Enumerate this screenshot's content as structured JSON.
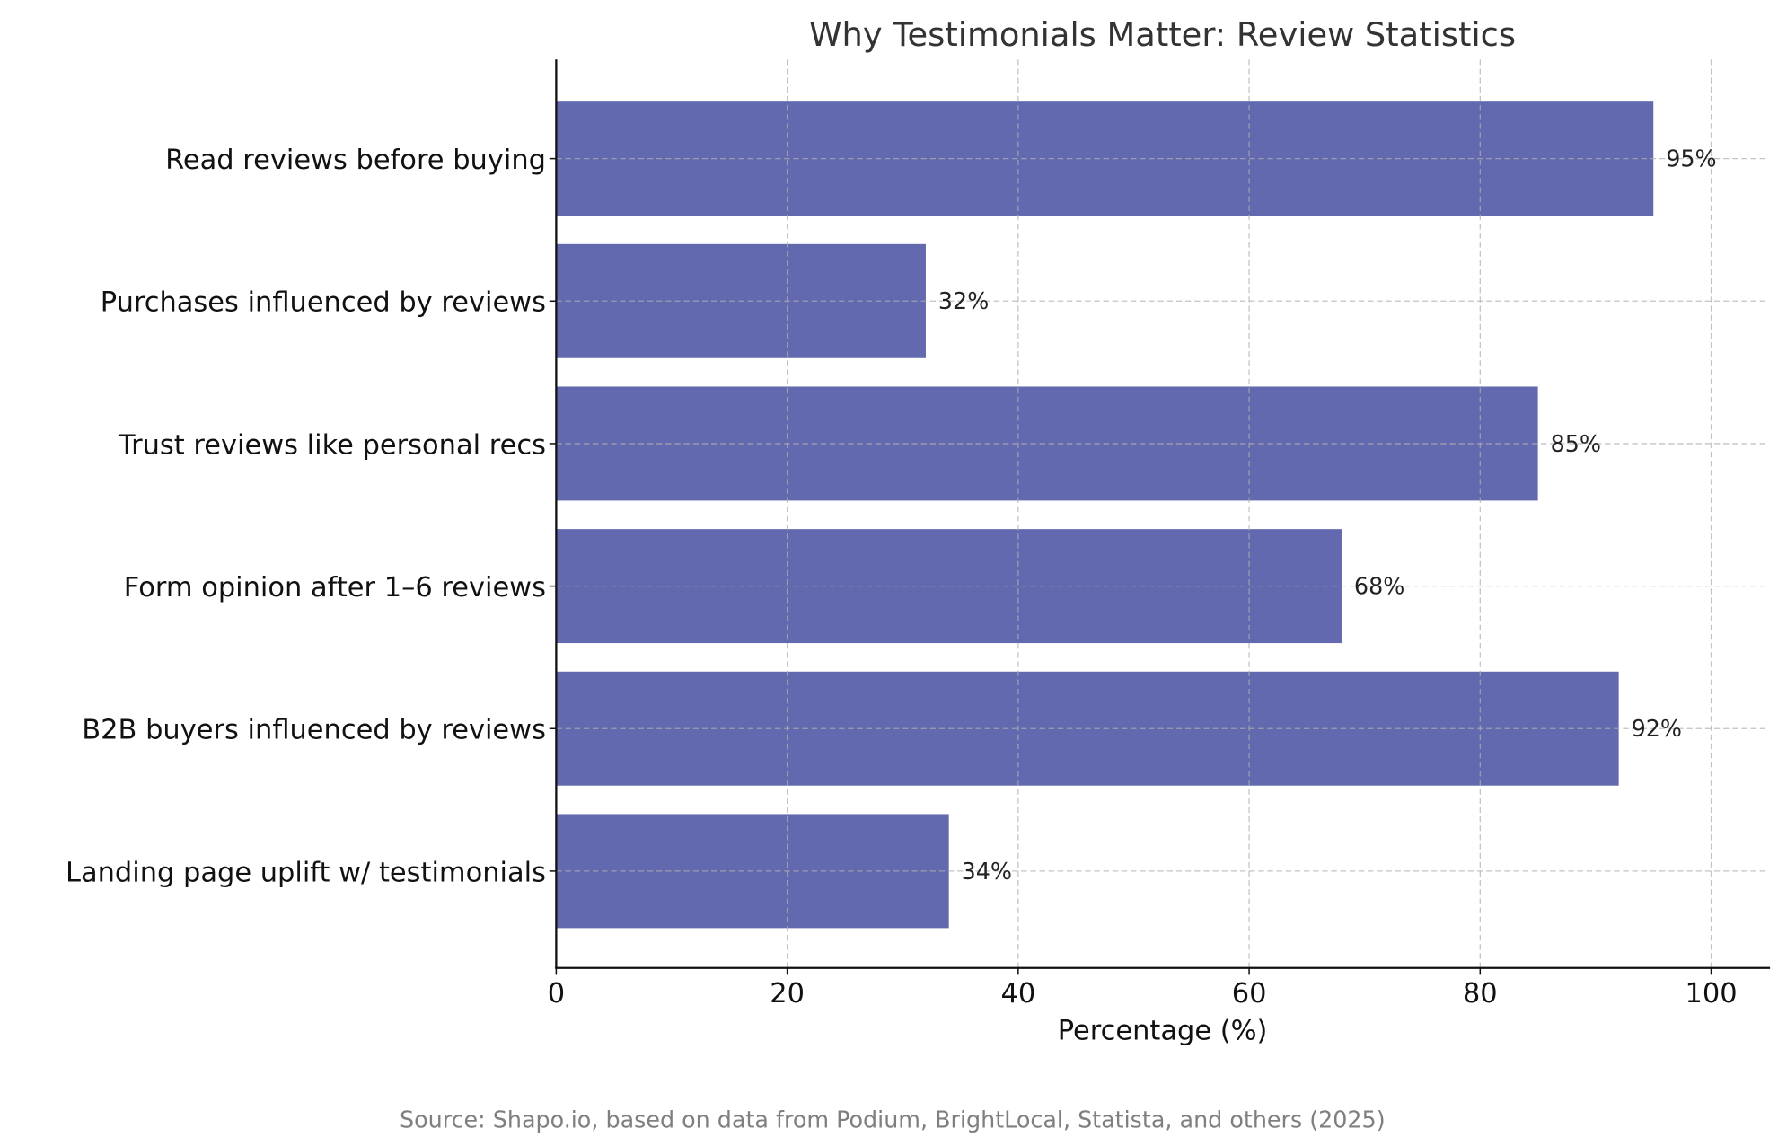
{
  "chart_data": {
    "type": "bar",
    "orientation": "horizontal",
    "title": "Why Testimonials Matter: Review Statistics",
    "xlabel": "Percentage (%)",
    "ylabel": "",
    "categories": [
      "Read reviews before buying",
      "Purchases influenced by reviews",
      "Trust reviews like personal recs",
      "Form opinion after 1–6 reviews",
      "B2B buyers influenced by reviews",
      "Landing page uplift w/ testimonials"
    ],
    "values": [
      95,
      32,
      85,
      68,
      92,
      34
    ],
    "data_labels": [
      "95%",
      "32%",
      "85%",
      "68%",
      "92%",
      "34%"
    ],
    "xlim": [
      0,
      105
    ],
    "xticks": [
      0,
      20,
      40,
      60,
      80,
      100
    ],
    "xtick_labels": [
      "0",
      "20",
      "40",
      "60",
      "80",
      "100"
    ],
    "grid": true,
    "bar_color": "#6269ae",
    "footnote": "Source: Shapo.io, based on data from Podium, BrightLocal, Statista, and others (2025)"
  }
}
